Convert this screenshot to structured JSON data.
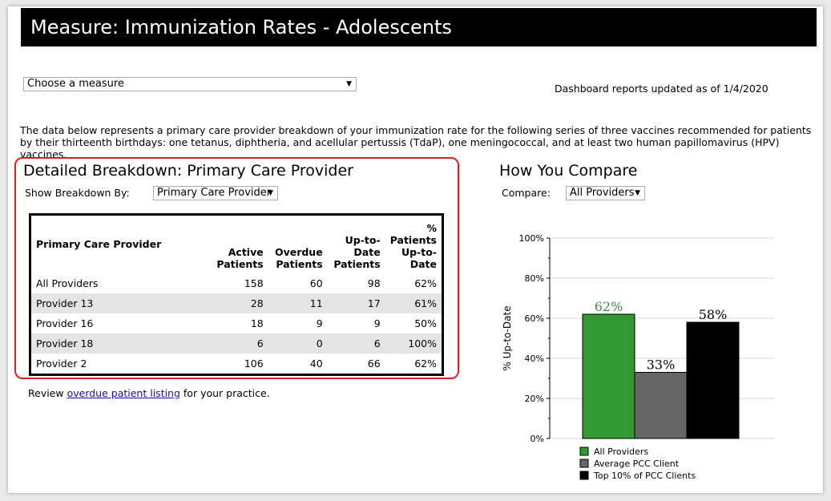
{
  "header": {
    "title": "Measure: Immunization Rates - Adolescents"
  },
  "measure_select": {
    "value": "Choose a measure"
  },
  "updated": {
    "text": "Dashboard reports updated as of 1/4/2020"
  },
  "description": "The data below represents a primary care provider breakdown of your immunization rate for the following series of three vaccines recommended for patients by their thirteenth birthdays: one tetanus, diphtheria, and acellular pertussis (TdaP), one meningococcal, and at least two human papillomavirus (HPV) vaccines.",
  "breakdown": {
    "title": "Detailed Breakdown: Primary Care Provider",
    "show_label": "Show Breakdown By:",
    "show_value": "Primary Care Provider",
    "columns": [
      "Primary Care Provider",
      "Active Patients",
      "Overdue Patients",
      "Up-to-Date Patients",
      "% Patients Up-to-Date"
    ],
    "rows": [
      [
        "All Providers",
        "158",
        "60",
        "98",
        "62%"
      ],
      [
        "Provider 13",
        "28",
        "11",
        "17",
        "61%"
      ],
      [
        "Provider 16",
        "18",
        "9",
        "9",
        "50%"
      ],
      [
        "Provider 18",
        "6",
        "0",
        "6",
        "100%"
      ],
      [
        "Provider 2",
        "106",
        "40",
        "66",
        "62%"
      ]
    ],
    "review_prefix": "Review",
    "review_link": "overdue patient listing",
    "review_suffix": "for your practice."
  },
  "compare": {
    "title": "How You Compare",
    "label": "Compare:",
    "value": "All Providers"
  },
  "chart_data": {
    "type": "bar",
    "title": "",
    "xlabel": "",
    "ylabel": "% Up-to-Date",
    "ylim": [
      0,
      100
    ],
    "yticks": [
      "0%",
      "20%",
      "40%",
      "60%",
      "80%",
      "100%"
    ],
    "grid": true,
    "legend_position": "bottom",
    "categories": [
      "All Providers",
      "Average PCC Client",
      "Top 10% of PCC Clients"
    ],
    "values": [
      62,
      33,
      58
    ],
    "data_labels": [
      "62%",
      "33%",
      "58%"
    ],
    "colors": [
      "#339933",
      "#666666",
      "#000000"
    ],
    "label_colors": [
      "#339933",
      "#000000",
      "#000000"
    ]
  }
}
